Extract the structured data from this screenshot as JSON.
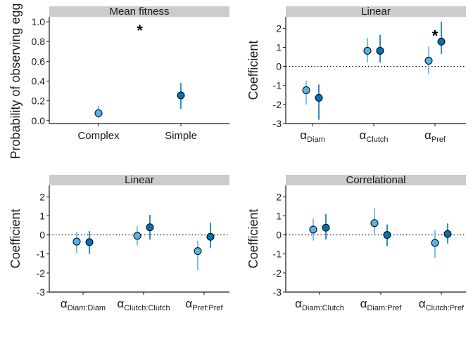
{
  "colors": {
    "complex": "#56B4E9",
    "simple": "#0072B2",
    "strip_background": "#cccccc",
    "axis": "#1a1a1a"
  },
  "chart_data": [
    {
      "type": "scatter",
      "strip": "Mean fitness",
      "ylabel": "Probability of observing egg par",
      "ylim": [
        -0.03,
        1.05
      ],
      "yticks": [
        0.0,
        0.2,
        0.4,
        0.6,
        0.8,
        1.0
      ],
      "ytick_labels": [
        "0.0",
        "0.2",
        "0.4",
        "0.6",
        "0.8",
        "1.0"
      ],
      "categories": [
        {
          "label": "Complex",
          "sub": ""
        },
        {
          "label": "Simple",
          "sub": ""
        }
      ],
      "points": [
        {
          "category": 0,
          "offset": 0,
          "color": "complex",
          "y": 0.075,
          "lo": 0.025,
          "hi": 0.15
        },
        {
          "category": 1,
          "offset": 0,
          "color": "simple",
          "y": 0.255,
          "lo": 0.12,
          "hi": 0.38
        }
      ],
      "annotations": [
        {
          "text": "*",
          "x": 0.5,
          "y": 0.93
        }
      ],
      "refline": null,
      "grid": false
    },
    {
      "type": "scatter",
      "strip": "Linear",
      "ylabel": "Coefficient",
      "ylim": [
        -3,
        2.6
      ],
      "yticks": [
        -3,
        -2,
        -1,
        0,
        1,
        2
      ],
      "ytick_labels": [
        "-3",
        "-2",
        "-1",
        "0",
        "1",
        "2"
      ],
      "categories": [
        {
          "label": "α",
          "sub": "Diam"
        },
        {
          "label": "α",
          "sub": "Clutch"
        },
        {
          "label": "α",
          "sub": "Pref"
        }
      ],
      "points": [
        {
          "category": 0,
          "offset": -1,
          "color": "complex",
          "y": -1.25,
          "lo": -2.0,
          "hi": -0.75
        },
        {
          "category": 0,
          "offset": 1,
          "color": "simple",
          "y": -1.65,
          "lo": -2.8,
          "hi": -0.95
        },
        {
          "category": 1,
          "offset": -1,
          "color": "complex",
          "y": 0.82,
          "lo": 0.2,
          "hi": 1.5
        },
        {
          "category": 1,
          "offset": 1,
          "color": "simple",
          "y": 0.82,
          "lo": 0.2,
          "hi": 1.65
        },
        {
          "category": 2,
          "offset": -1,
          "color": "complex",
          "y": 0.3,
          "lo": -0.4,
          "hi": 1.05
        },
        {
          "category": 2,
          "offset": 1,
          "color": "simple",
          "y": 1.3,
          "lo": 0.65,
          "hi": 2.35
        }
      ],
      "annotations": [
        {
          "text": "*",
          "x": 2.02,
          "y": 1.7
        }
      ],
      "refline": 0,
      "grid": false
    },
    {
      "type": "scatter",
      "strip": "Linear",
      "ylabel": "Coefficient",
      "ylim": [
        -3,
        2.6
      ],
      "yticks": [
        -3,
        -2,
        -1,
        0,
        1,
        2
      ],
      "ytick_labels": [
        "-3",
        "-2",
        "-1",
        "0",
        "1",
        "2"
      ],
      "categories": [
        {
          "label": "α",
          "sub": "Diam:Diam"
        },
        {
          "label": "α",
          "sub": "Clutch:Clutch"
        },
        {
          "label": "α",
          "sub": "Pref:Pref"
        }
      ],
      "points": [
        {
          "category": 0,
          "offset": -1,
          "color": "complex",
          "y": -0.35,
          "lo": -0.95,
          "hi": 0.15
        },
        {
          "category": 0,
          "offset": 1,
          "color": "simple",
          "y": -0.38,
          "lo": -1.0,
          "hi": 0.2
        },
        {
          "category": 1,
          "offset": -1,
          "color": "complex",
          "y": -0.05,
          "lo": -0.55,
          "hi": 0.45
        },
        {
          "category": 1,
          "offset": 1,
          "color": "simple",
          "y": 0.4,
          "lo": -0.25,
          "hi": 1.05
        },
        {
          "category": 2,
          "offset": -1,
          "color": "complex",
          "y": -0.85,
          "lo": -1.85,
          "hi": -0.3
        },
        {
          "category": 2,
          "offset": 1,
          "color": "simple",
          "y": -0.1,
          "lo": -0.7,
          "hi": 0.65
        }
      ],
      "annotations": [],
      "refline": 0,
      "grid": false
    },
    {
      "type": "scatter",
      "strip": "Correlational",
      "ylabel": "Coefficient",
      "ylim": [
        -3,
        2.6
      ],
      "yticks": [
        -3,
        -2,
        -1,
        0,
        1,
        2
      ],
      "ytick_labels": [
        "-3",
        "-2",
        "-1",
        "0",
        "1",
        "2"
      ],
      "categories": [
        {
          "label": "α",
          "sub": "Diam:Clutch"
        },
        {
          "label": "α",
          "sub": "Diam:Pref"
        },
        {
          "label": "α",
          "sub": "Clutch:Pref"
        }
      ],
      "points": [
        {
          "category": 0,
          "offset": -1,
          "color": "complex",
          "y": 0.28,
          "lo": -0.3,
          "hi": 0.85
        },
        {
          "category": 0,
          "offset": 1,
          "color": "simple",
          "y": 0.38,
          "lo": -0.25,
          "hi": 1.1
        },
        {
          "category": 1,
          "offset": -1,
          "color": "complex",
          "y": 0.62,
          "lo": 0.05,
          "hi": 1.4
        },
        {
          "category": 1,
          "offset": 1,
          "color": "simple",
          "y": 0.0,
          "lo": -0.6,
          "hi": 0.55
        },
        {
          "category": 2,
          "offset": -1,
          "color": "complex",
          "y": -0.42,
          "lo": -1.2,
          "hi": 0.25
        },
        {
          "category": 2,
          "offset": 1,
          "color": "simple",
          "y": 0.05,
          "lo": -0.45,
          "hi": 0.6
        }
      ],
      "annotations": [],
      "refline": 0,
      "grid": false
    }
  ]
}
